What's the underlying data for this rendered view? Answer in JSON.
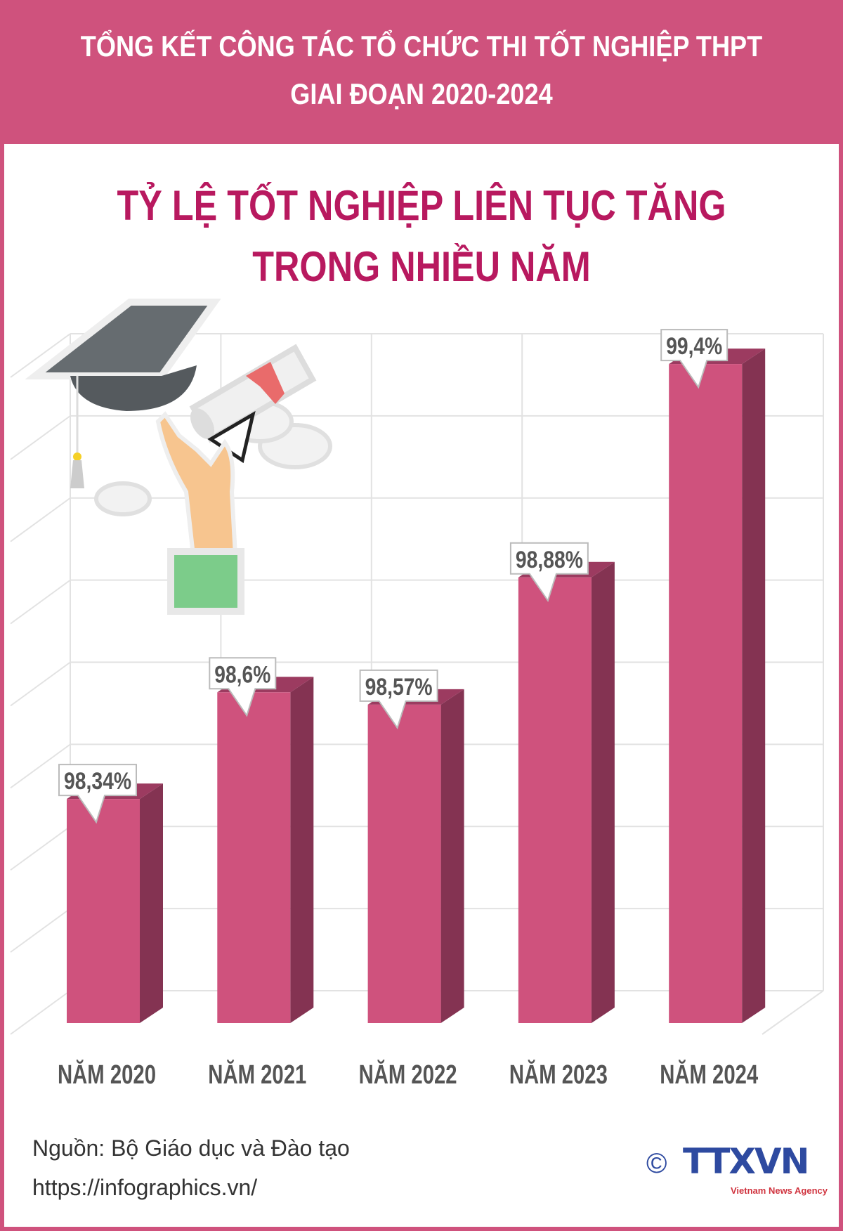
{
  "header": {
    "line1": "TỔNG KẾT CÔNG TÁC TỔ CHỨC THI TỐT NGHIỆP THPT",
    "line2": "GIAI ĐOẠN 2020-2024"
  },
  "subtitle": {
    "line1": "TỶ LỆ TỐT NGHIỆP LIÊN TỤC TĂNG",
    "line2": "TRONG NHIỀU NĂM"
  },
  "footer": {
    "source": "Nguồn: Bộ Giáo dục và Đào tạo",
    "url": "https://infographics.vn/",
    "logo_text": "TTXVN",
    "logo_tagline": "Vietnam News Agency",
    "copyright": "©"
  },
  "colors": {
    "header_bg": "#cf527d",
    "subtitle": "#b8195f",
    "bar_front": "#cf527d",
    "bar_side": "#843352",
    "label": "#555555"
  },
  "chart_data": {
    "type": "bar",
    "style": "3d",
    "categories": [
      "NĂM 2020",
      "NĂM 2021",
      "NĂM 2022",
      "NĂM 2023",
      "NĂM 2024"
    ],
    "values": [
      98.34,
      98.6,
      98.57,
      98.88,
      99.4
    ],
    "data_labels": [
      "98,34%",
      "98,6%",
      "98,57%",
      "98,88%",
      "99,4%"
    ],
    "unit": "%",
    "grid": true,
    "legend": "none"
  }
}
